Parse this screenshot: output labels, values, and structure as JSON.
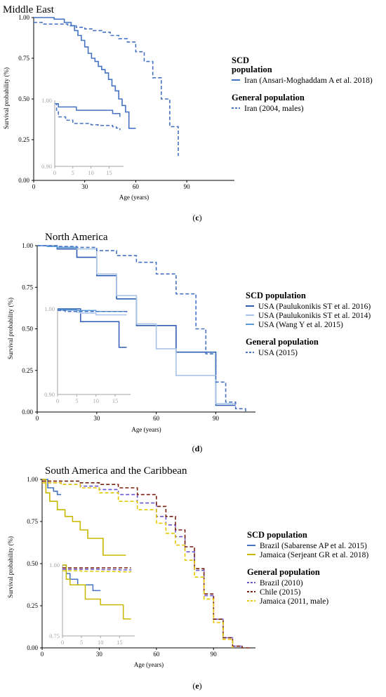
{
  "chart_data": [
    {
      "type": "line",
      "title": "Middle East",
      "caption_letter": "c",
      "xlabel": "Age (years)",
      "ylabel": "Survival probability (%)",
      "xlim": [
        0,
        118
      ],
      "ylim": [
        0,
        1
      ],
      "xticks": [
        0,
        30,
        60,
        90
      ],
      "yticks": [
        "0.00",
        "0.25",
        "0.50",
        "0.75",
        "1.00"
      ],
      "legend_position": "right",
      "legend_groups": [
        {
          "heading": "SCD population",
          "items": [
            0
          ]
        },
        {
          "heading": "General population",
          "items": [
            1
          ]
        }
      ],
      "series": [
        {
          "name": "Iran (Ansari-Moghaddam A et al. 2018)",
          "color": "#4472c4",
          "dash": "solid",
          "x": [
            0,
            12,
            18,
            22,
            24,
            26,
            28,
            30,
            32,
            34,
            36,
            38,
            40,
            42,
            44,
            46,
            48,
            50,
            52,
            54,
            56,
            58,
            60
          ],
          "y": [
            1.0,
            0.99,
            0.97,
            0.95,
            0.92,
            0.89,
            0.86,
            0.82,
            0.78,
            0.75,
            0.73,
            0.7,
            0.68,
            0.66,
            0.62,
            0.58,
            0.55,
            0.5,
            0.46,
            0.42,
            0.32,
            0.32,
            0.32
          ]
        },
        {
          "name": "Iran (2004, males)",
          "color": "#4472c4",
          "dash": "dashed",
          "x": [
            0,
            5,
            10,
            20,
            25,
            30,
            35,
            40,
            45,
            50,
            55,
            60,
            65,
            70,
            75,
            80,
            85
          ],
          "y": [
            0.97,
            0.96,
            0.96,
            0.95,
            0.94,
            0.93,
            0.92,
            0.91,
            0.89,
            0.87,
            0.85,
            0.79,
            0.73,
            0.63,
            0.5,
            0.33,
            0.15
          ]
        }
      ],
      "inset": {
        "xlim": [
          0,
          19
        ],
        "ylim": [
          0.9,
          1.0
        ],
        "xticks": [
          0,
          5,
          10,
          15
        ],
        "yticks": [
          "0.90",
          "1.00"
        ],
        "series": [
          {
            "x": [
              0,
              0.5,
              1,
              5,
              6,
              10,
              12,
              15,
              16,
              17,
              18
            ],
            "y": [
              0.995,
              0.995,
              0.99,
              0.99,
              0.985,
              0.985,
              0.985,
              0.985,
              0.98,
              0.98,
              0.975
            ]
          },
          {
            "x": [
              0,
              0.5,
              1,
              3,
              5,
              8,
              10,
              12,
              14,
              16,
              17,
              18
            ],
            "y": [
              0.995,
              0.985,
              0.975,
              0.97,
              0.965,
              0.965,
              0.963,
              0.962,
              0.962,
              0.96,
              0.958,
              0.955
            ]
          }
        ]
      }
    },
    {
      "type": "line",
      "title": "North America",
      "caption_letter": "d",
      "xlabel": "Age (years)",
      "ylabel": "Survival probability (%)",
      "xlim": [
        0,
        110
      ],
      "ylim": [
        0,
        1
      ],
      "xticks": [
        0,
        30,
        60,
        90
      ],
      "yticks": [
        "0.00",
        "0.25",
        "0.50",
        "0.75",
        "1.00"
      ],
      "legend_position": "right",
      "legend_groups": [
        {
          "heading": "SCD population",
          "items": [
            0,
            1,
            2
          ]
        },
        {
          "heading": "General population",
          "items": [
            3
          ]
        }
      ],
      "series": [
        {
          "name": "USA (Paulukonikis ST et al. 2016)",
          "color": "#2e5db4",
          "dash": "solid",
          "x": [
            0,
            10,
            20,
            30,
            40,
            50,
            60,
            70,
            80,
            90,
            95,
            100
          ],
          "y": [
            1.0,
            0.98,
            0.93,
            0.82,
            0.68,
            0.52,
            0.52,
            0.36,
            0.36,
            0.04,
            0.04,
            0.04
          ]
        },
        {
          "name": "USA (Paulukonikis ST et al. 2014)",
          "color": "#a9c3e6",
          "dash": "solid",
          "x": [
            0,
            10,
            20,
            30,
            40,
            50,
            60,
            70,
            80,
            90,
            100
          ],
          "y": [
            1.0,
            0.99,
            0.98,
            0.83,
            0.7,
            0.53,
            0.38,
            0.22,
            0.22,
            0.05,
            0.05
          ]
        },
        {
          "name": "USA (Wang Y et al. 2015)",
          "color": "#5b9bd5",
          "dash": "solid",
          "x": [
            0,
            5,
            10,
            15,
            20
          ],
          "y": [
            1.0,
            0.995,
            0.99,
            0.99,
            0.985
          ]
        },
        {
          "name": "USA (2015)",
          "color": "#4472c4",
          "dash": "dashed",
          "x": [
            0,
            10,
            20,
            30,
            40,
            50,
            60,
            70,
            80,
            85,
            90,
            95,
            100,
            105
          ],
          "y": [
            1.0,
            0.995,
            0.99,
            0.97,
            0.94,
            0.9,
            0.83,
            0.71,
            0.5,
            0.35,
            0.18,
            0.06,
            0.02,
            0.0
          ]
        }
      ],
      "inset": {
        "xlim": [
          0,
          19
        ],
        "ylim": [
          0.9,
          1.0
        ],
        "xticks": [
          0,
          5,
          10,
          15
        ],
        "yticks": [
          "0.90",
          "1.00"
        ],
        "series": [
          {
            "x": [
              0,
              5,
              6,
              10,
              12,
              15,
              16,
              18
            ],
            "y": [
              1.0,
              1.0,
              0.985,
              0.985,
              0.985,
              0.985,
              0.955,
              0.955
            ]
          },
          {
            "x": [
              0,
              5,
              6,
              10,
              15,
              18
            ],
            "y": [
              0.998,
              0.996,
              0.995,
              0.993,
              0.993,
              0.993
            ]
          },
          {
            "x": [
              0,
              5,
              10,
              15,
              18
            ],
            "y": [
              0.999,
              0.998,
              0.997,
              0.997,
              0.997
            ]
          },
          {
            "x": [
              0,
              2,
              5,
              10,
              15,
              18
            ],
            "y": [
              0.998,
              0.997,
              0.997,
              0.997,
              0.997,
              0.996
            ]
          }
        ]
      }
    },
    {
      "type": "line",
      "title": "South America and the Caribbean",
      "caption_letter": "e",
      "xlabel": "Age (years)",
      "ylabel": "Survival probability (%)",
      "xlim": [
        0,
        112
      ],
      "ylim": [
        0,
        1
      ],
      "xticks": [
        0,
        30,
        60,
        90
      ],
      "yticks": [
        "0.00",
        "0.25",
        "0.50",
        "0.75",
        "1.00"
      ],
      "legend_position": "right",
      "legend_groups": [
        {
          "heading": "SCD population",
          "items": [
            0,
            1
          ]
        },
        {
          "heading": "General population",
          "items": [
            2,
            3,
            4
          ]
        }
      ],
      "series": [
        {
          "name": "Brazil (Sabarense AP et al. 2015)",
          "color": "#4472c4",
          "dash": "solid",
          "x": [
            0,
            3,
            6,
            8,
            10
          ],
          "y": [
            1.0,
            0.95,
            0.93,
            0.91,
            0.91
          ]
        },
        {
          "name": "Jamaica (Serjeant GR et al. 2018)",
          "color": "#c9b800",
          "dash": "solid",
          "x": [
            0,
            2,
            4,
            8,
            12,
            16,
            20,
            24,
            28,
            32,
            36,
            40,
            44
          ],
          "y": [
            1.0,
            0.92,
            0.87,
            0.82,
            0.78,
            0.75,
            0.7,
            0.65,
            0.65,
            0.55,
            0.55,
            0.55,
            0.55
          ]
        },
        {
          "name": "Brazil (2010)",
          "color": "#6a55d4",
          "dash": "dashed",
          "x": [
            0,
            10,
            20,
            30,
            40,
            50,
            60,
            65,
            70,
            75,
            80,
            85,
            90,
            95,
            100,
            105
          ],
          "y": [
            0.98,
            0.97,
            0.96,
            0.94,
            0.91,
            0.86,
            0.78,
            0.73,
            0.66,
            0.57,
            0.46,
            0.31,
            0.17,
            0.06,
            0.01,
            0.0
          ]
        },
        {
          "name": "Chile (2015)",
          "color": "#7a1f10",
          "dash": "dashed",
          "x": [
            0,
            10,
            20,
            30,
            40,
            50,
            60,
            65,
            70,
            75,
            80,
            85,
            90,
            95,
            100,
            105,
            110
          ],
          "y": [
            0.99,
            0.99,
            0.98,
            0.97,
            0.95,
            0.91,
            0.84,
            0.78,
            0.7,
            0.6,
            0.47,
            0.32,
            0.17,
            0.06,
            0.01,
            0.0,
            0.0
          ]
        },
        {
          "name": "Jamaica (2011, male)",
          "color": "#e8c800",
          "dash": "dashed",
          "x": [
            0,
            10,
            20,
            30,
            40,
            50,
            60,
            65,
            70,
            75,
            80,
            85,
            90,
            95,
            100
          ],
          "y": [
            0.98,
            0.97,
            0.95,
            0.92,
            0.87,
            0.82,
            0.74,
            0.68,
            0.61,
            0.52,
            0.42,
            0.29,
            0.15,
            0.05,
            0.0
          ]
        }
      ],
      "inset": {
        "xlim": [
          0,
          19
        ],
        "ylim": [
          0.75,
          1.0
        ],
        "xticks": [
          0,
          5,
          10,
          15
        ],
        "yticks": [
          "0.75",
          "1.00"
        ],
        "series": [
          {
            "x": [
              0,
              1,
              2,
              4,
              6,
              8,
              10
            ],
            "y": [
              1.0,
              0.97,
              0.95,
              0.93,
              0.93,
              0.91,
              0.91
            ]
          },
          {
            "x": [
              0,
              1,
              2,
              4,
              6,
              8,
              10,
              14,
              16,
              18
            ],
            "y": [
              1.0,
              0.95,
              0.93,
              0.93,
              0.88,
              0.88,
              0.86,
              0.86,
              0.81,
              0.81
            ]
          },
          {
            "x": [
              0,
              5,
              10,
              15,
              18
            ],
            "y": [
              0.985,
              0.985,
              0.984,
              0.983,
              0.982
            ]
          },
          {
            "x": [
              0,
              5,
              10,
              15,
              18
            ],
            "y": [
              0.99,
              0.99,
              0.99,
              0.99,
              0.99
            ]
          },
          {
            "x": [
              0,
              5,
              10,
              15,
              18
            ],
            "y": [
              0.98,
              0.978,
              0.977,
              0.976,
              0.975
            ]
          }
        ]
      }
    }
  ]
}
